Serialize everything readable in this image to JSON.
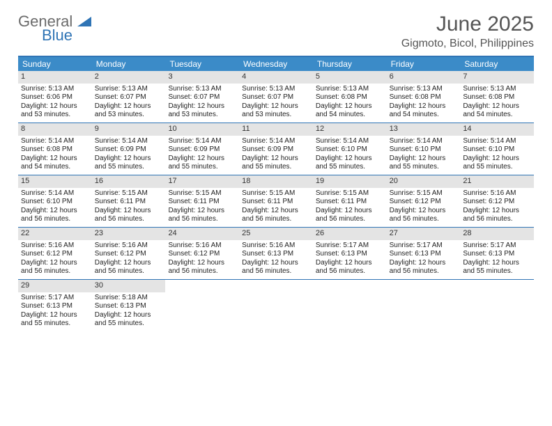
{
  "brand": {
    "line1": "General",
    "line2": "Blue"
  },
  "title": "June 2025",
  "location": "Gigmoto, Bicol, Philippines",
  "colors": {
    "header_bar": "#3b8bc8",
    "border": "#2f74b5",
    "daynum_bg": "#e4e4e4",
    "text": "#222222",
    "title_text": "#555555",
    "logo_gray": "#6b6b6b",
    "logo_blue": "#2f74b5",
    "background": "#ffffff"
  },
  "typography": {
    "title_fontsize": 30,
    "location_fontsize": 16,
    "dayhead_fontsize": 12,
    "daynum_fontsize": 11,
    "cell_fontsize": 10
  },
  "day_headers": [
    "Sunday",
    "Monday",
    "Tuesday",
    "Wednesday",
    "Thursday",
    "Friday",
    "Saturday"
  ],
  "weeks": [
    [
      {
        "n": "1",
        "sr": "5:13 AM",
        "ss": "6:06 PM",
        "dl": "12 hours and 53 minutes."
      },
      {
        "n": "2",
        "sr": "5:13 AM",
        "ss": "6:07 PM",
        "dl": "12 hours and 53 minutes."
      },
      {
        "n": "3",
        "sr": "5:13 AM",
        "ss": "6:07 PM",
        "dl": "12 hours and 53 minutes."
      },
      {
        "n": "4",
        "sr": "5:13 AM",
        "ss": "6:07 PM",
        "dl": "12 hours and 53 minutes."
      },
      {
        "n": "5",
        "sr": "5:13 AM",
        "ss": "6:08 PM",
        "dl": "12 hours and 54 minutes."
      },
      {
        "n": "6",
        "sr": "5:13 AM",
        "ss": "6:08 PM",
        "dl": "12 hours and 54 minutes."
      },
      {
        "n": "7",
        "sr": "5:13 AM",
        "ss": "6:08 PM",
        "dl": "12 hours and 54 minutes."
      }
    ],
    [
      {
        "n": "8",
        "sr": "5:14 AM",
        "ss": "6:08 PM",
        "dl": "12 hours and 54 minutes."
      },
      {
        "n": "9",
        "sr": "5:14 AM",
        "ss": "6:09 PM",
        "dl": "12 hours and 55 minutes."
      },
      {
        "n": "10",
        "sr": "5:14 AM",
        "ss": "6:09 PM",
        "dl": "12 hours and 55 minutes."
      },
      {
        "n": "11",
        "sr": "5:14 AM",
        "ss": "6:09 PM",
        "dl": "12 hours and 55 minutes."
      },
      {
        "n": "12",
        "sr": "5:14 AM",
        "ss": "6:10 PM",
        "dl": "12 hours and 55 minutes."
      },
      {
        "n": "13",
        "sr": "5:14 AM",
        "ss": "6:10 PM",
        "dl": "12 hours and 55 minutes."
      },
      {
        "n": "14",
        "sr": "5:14 AM",
        "ss": "6:10 PM",
        "dl": "12 hours and 55 minutes."
      }
    ],
    [
      {
        "n": "15",
        "sr": "5:14 AM",
        "ss": "6:10 PM",
        "dl": "12 hours and 56 minutes."
      },
      {
        "n": "16",
        "sr": "5:15 AM",
        "ss": "6:11 PM",
        "dl": "12 hours and 56 minutes."
      },
      {
        "n": "17",
        "sr": "5:15 AM",
        "ss": "6:11 PM",
        "dl": "12 hours and 56 minutes."
      },
      {
        "n": "18",
        "sr": "5:15 AM",
        "ss": "6:11 PM",
        "dl": "12 hours and 56 minutes."
      },
      {
        "n": "19",
        "sr": "5:15 AM",
        "ss": "6:11 PM",
        "dl": "12 hours and 56 minutes."
      },
      {
        "n": "20",
        "sr": "5:15 AM",
        "ss": "6:12 PM",
        "dl": "12 hours and 56 minutes."
      },
      {
        "n": "21",
        "sr": "5:16 AM",
        "ss": "6:12 PM",
        "dl": "12 hours and 56 minutes."
      }
    ],
    [
      {
        "n": "22",
        "sr": "5:16 AM",
        "ss": "6:12 PM",
        "dl": "12 hours and 56 minutes."
      },
      {
        "n": "23",
        "sr": "5:16 AM",
        "ss": "6:12 PM",
        "dl": "12 hours and 56 minutes."
      },
      {
        "n": "24",
        "sr": "5:16 AM",
        "ss": "6:12 PM",
        "dl": "12 hours and 56 minutes."
      },
      {
        "n": "25",
        "sr": "5:16 AM",
        "ss": "6:13 PM",
        "dl": "12 hours and 56 minutes."
      },
      {
        "n": "26",
        "sr": "5:17 AM",
        "ss": "6:13 PM",
        "dl": "12 hours and 56 minutes."
      },
      {
        "n": "27",
        "sr": "5:17 AM",
        "ss": "6:13 PM",
        "dl": "12 hours and 56 minutes."
      },
      {
        "n": "28",
        "sr": "5:17 AM",
        "ss": "6:13 PM",
        "dl": "12 hours and 55 minutes."
      }
    ],
    [
      {
        "n": "29",
        "sr": "5:17 AM",
        "ss": "6:13 PM",
        "dl": "12 hours and 55 minutes."
      },
      {
        "n": "30",
        "sr": "5:18 AM",
        "ss": "6:13 PM",
        "dl": "12 hours and 55 minutes."
      },
      null,
      null,
      null,
      null,
      null
    ]
  ],
  "labels": {
    "sunrise": "Sunrise:",
    "sunset": "Sunset:",
    "daylight": "Daylight:"
  }
}
